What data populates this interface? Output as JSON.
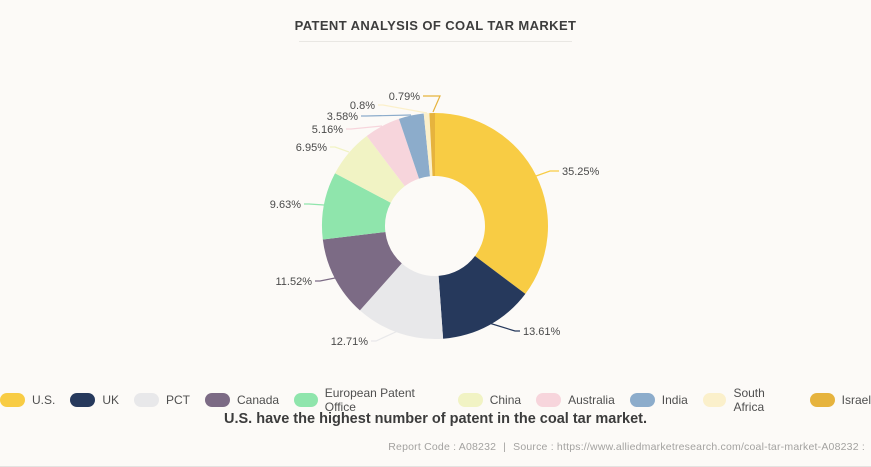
{
  "title": "PATENT ANALYSIS OF COAL TAR MARKET",
  "caption": "U.S. have the highest number of patent in the coal tar market.",
  "footer": {
    "report_code": "Report Code : A08232",
    "separator": "|",
    "source": "Source : https://www.alliedmarketresearch.com/coal-tar-market-A08232 :"
  },
  "chart_data": {
    "type": "pie",
    "donut": true,
    "title": "PATENT ANALYSIS OF COAL TAR MARKET",
    "start_angle": "12 o'clock",
    "direction": "clockwise",
    "legend_position": "bottom",
    "categories": [
      "U.S.",
      "UK",
      "PCT",
      "Canada",
      "European Patent Office",
      "China",
      "Australia",
      "India",
      "South Africa",
      "Israel"
    ],
    "values": [
      35.25,
      13.61,
      12.71,
      11.52,
      9.63,
      6.95,
      5.16,
      3.58,
      0.8,
      0.79
    ],
    "labels": [
      "35.25%",
      "13.61%",
      "12.71%",
      "11.52%",
      "9.63%",
      "6.95%",
      "5.16%",
      "3.58%",
      "0.8%",
      "0.79%"
    ],
    "colors": [
      "#F8CC44",
      "#26395C",
      "#E8E8EA",
      "#7C6B85",
      "#8FE5AC",
      "#F1F3C4",
      "#F7D5DC",
      "#8CACCB",
      "#FBF0CB",
      "#E6B33D"
    ],
    "unit": "%"
  }
}
